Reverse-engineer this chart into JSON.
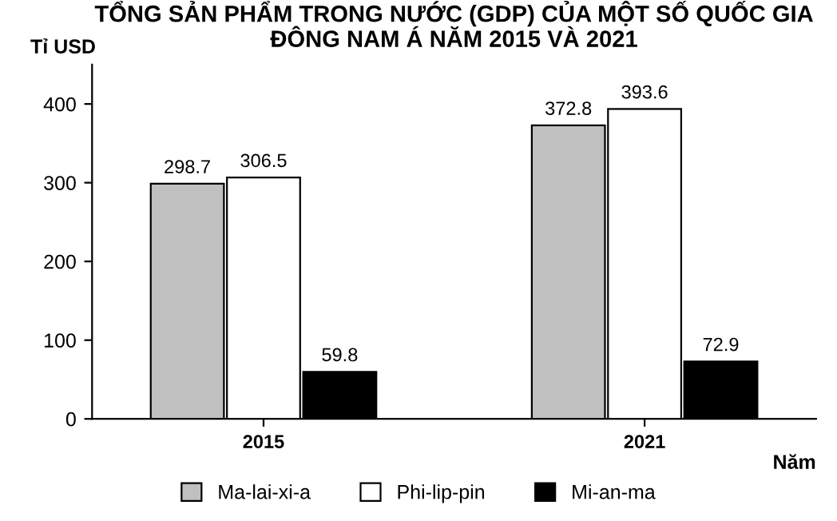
{
  "chart_data": {
    "type": "bar",
    "title": "TỔNG SẢN PHẨM TRONG NƯỚC (GDP) CỦA MỘT SỐ QUỐC GIA\nĐÔNG NAM Á NĂM 2015 VÀ 2021",
    "categories": [
      "2015",
      "2021"
    ],
    "series": [
      {
        "name": "Ma-lai-xi-a",
        "color": "#c0c0c0",
        "values": [
          298.7,
          372.8
        ]
      },
      {
        "name": "Phi-lip-pin",
        "color": "#ffffff",
        "values": [
          306.5,
          393.6
        ]
      },
      {
        "name": "Mi-an-ma",
        "color": "#000000",
        "values": [
          59.8,
          72.9
        ]
      }
    ],
    "ylabel": "Tỉ USD",
    "xlabel": "Năm",
    "ylim": [
      0,
      450
    ],
    "yticks": [
      0,
      100,
      200,
      300,
      400
    ],
    "data_labels": true,
    "legend": "bottom",
    "grid": false
  }
}
